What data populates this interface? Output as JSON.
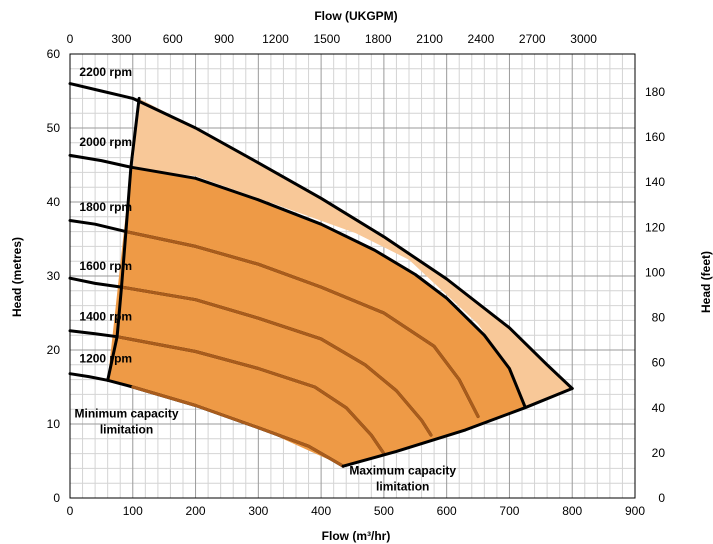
{
  "chart_data": {
    "type": "line",
    "title": "",
    "xlabel": "Flow (m³/hr)",
    "ylabel": "Head (metres)",
    "x2label": "Flow (UKGPM)",
    "y2label": "Head (feet)",
    "xlim": [
      0,
      900
    ],
    "ylim": [
      0,
      60
    ],
    "x2lim": [
      0,
      3300
    ],
    "y2lim": [
      0,
      196.85
    ],
    "xticks": [
      "0",
      "100",
      "200",
      "300",
      "400",
      "500",
      "600",
      "700",
      "800",
      "900"
    ],
    "yticks": [
      "0",
      "10",
      "20",
      "30",
      "40",
      "50",
      "60"
    ],
    "x2ticks": [
      "0",
      "300",
      "600",
      "900",
      "1200",
      "1500",
      "1800",
      "2100",
      "2400",
      "2700",
      "3000"
    ],
    "y2ticks": [
      "0",
      "20",
      "40",
      "60",
      "80",
      "100",
      "120",
      "140",
      "160",
      "180"
    ],
    "grid": true,
    "colors": {
      "outer_region": "#f8c898",
      "inner_region": "#ee9a46",
      "curve_line": "#000000",
      "inner_curve_line": "#a95c1c"
    },
    "regions": [
      {
        "name": "outer",
        "points": [
          [
            110,
            54
          ],
          [
            200,
            50
          ],
          [
            300,
            45.3
          ],
          [
            400,
            40.5
          ],
          [
            500,
            35.3
          ],
          [
            600,
            29.6
          ],
          [
            700,
            23
          ],
          [
            760,
            18
          ],
          [
            800,
            14.8
          ],
          [
            725,
            12.2
          ],
          [
            630,
            9.2
          ],
          [
            520,
            6.3
          ],
          [
            435,
            4.3
          ],
          [
            465,
            6
          ],
          [
            515,
            8
          ],
          [
            585,
            10.5
          ],
          [
            650,
            11.5
          ],
          [
            725,
            12.3
          ],
          [
            700,
            17.5
          ],
          [
            650,
            23.5
          ],
          [
            540,
            32.2
          ],
          [
            455,
            35.8
          ],
          [
            300,
            40.5
          ],
          [
            200,
            43.5
          ],
          [
            100,
            44.5
          ],
          [
            110,
            54
          ]
        ]
      },
      {
        "name": "inner",
        "points": [
          [
            97,
            44.7
          ],
          [
            200,
            43.2
          ],
          [
            300,
            40.3
          ],
          [
            400,
            37
          ],
          [
            485,
            33.5
          ],
          [
            550,
            30.2
          ],
          [
            600,
            27
          ],
          [
            660,
            22
          ],
          [
            700,
            17.5
          ],
          [
            725,
            12.3
          ],
          [
            630,
            9.2
          ],
          [
            520,
            6.3
          ],
          [
            435,
            4.3
          ],
          [
            300,
            9.5
          ],
          [
            200,
            12.5
          ],
          [
            100,
            15
          ],
          [
            60,
            15.9
          ],
          [
            97,
            44.7
          ]
        ]
      }
    ],
    "series": [
      {
        "name": "2200 rpm",
        "x": [
          0,
          50,
          100,
          200,
          300,
          400,
          500,
          600,
          700,
          760,
          800
        ],
        "y": [
          56,
          55,
          54,
          50,
          45.3,
          40.5,
          35.3,
          29.6,
          23,
          18,
          14.8
        ]
      },
      {
        "name": "2000 rpm",
        "x": [
          0,
          50,
          97,
          200,
          300,
          400,
          485,
          550,
          600,
          660,
          700,
          725
        ],
        "y": [
          46.3,
          45.6,
          44.7,
          43.2,
          40.3,
          37,
          33.5,
          30.2,
          27,
          22,
          17.5,
          12.3
        ]
      },
      {
        "name": "1800 rpm",
        "x": [
          0,
          40,
          89,
          200,
          300,
          400,
          500,
          580,
          620,
          650
        ],
        "y": [
          37.5,
          37,
          36,
          34,
          31.6,
          28.5,
          25,
          20.5,
          16,
          11
        ]
      },
      {
        "name": "1600 rpm",
        "x": [
          0,
          40,
          82,
          200,
          300,
          400,
          470,
          520,
          560,
          575
        ],
        "y": [
          29.7,
          29,
          28.5,
          26.8,
          24.3,
          21.5,
          18,
          14.5,
          10.5,
          8.5
        ]
      },
      {
        "name": "1400 rpm",
        "x": [
          0,
          40,
          75,
          200,
          300,
          390,
          440,
          480,
          500
        ],
        "y": [
          22.6,
          22.2,
          21.8,
          19.8,
          17.5,
          15,
          12.2,
          8.5,
          6
        ]
      },
      {
        "name": "1200 rpm",
        "x": [
          0,
          30,
          60,
          100,
          200,
          300,
          380,
          415,
          435
        ],
        "y": [
          16.8,
          16.4,
          15.9,
          15,
          12.5,
          9.5,
          7,
          5.3,
          4.3
        ]
      },
      {
        "name": "Minimum capacity limitation",
        "x": [
          60,
          75,
          82,
          89,
          97,
          110
        ],
        "y": [
          15.9,
          21.8,
          28.5,
          36,
          44.7,
          54
        ]
      },
      {
        "name": "Maximum capacity limitation",
        "x": [
          435,
          520,
          630,
          725,
          800
        ],
        "y": [
          4.3,
          6.3,
          9.2,
          12.2,
          14.8
        ]
      }
    ],
    "annotations": [
      {
        "text": "2200 rpm",
        "x": 15,
        "y": 57
      },
      {
        "text": "2000 rpm",
        "x": 15,
        "y": 47.6
      },
      {
        "text": "1800 rpm",
        "x": 15,
        "y": 38.8
      },
      {
        "text": "1600 rpm",
        "x": 15,
        "y": 30.8
      },
      {
        "text": "1400 rpm",
        "x": 15,
        "y": 24
      },
      {
        "text": "1200 rpm",
        "x": 15,
        "y": 18.3
      },
      {
        "text": "Minimum capacity",
        "x": 90,
        "y": 10.9
      },
      {
        "text": "limitation",
        "x": 90,
        "y": 8.7
      },
      {
        "text": "Maximum capacity",
        "x": 530,
        "y": 3.2
      },
      {
        "text": "limitation",
        "x": 530,
        "y": 1.0
      }
    ]
  }
}
